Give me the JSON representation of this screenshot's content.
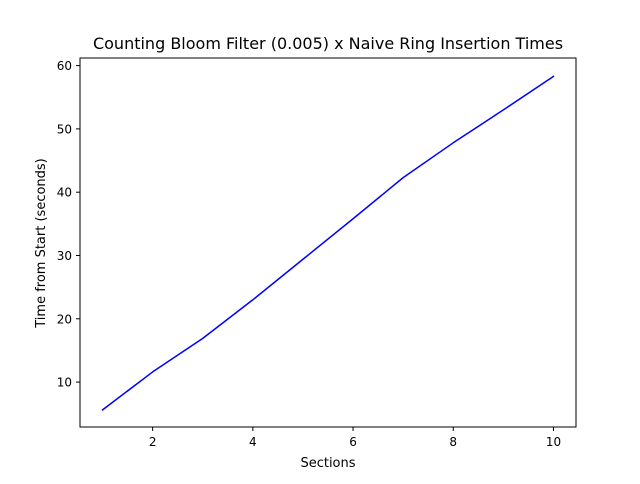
{
  "chart_data": {
    "type": "line",
    "title": "Counting Bloom Filter (0.005) x Naive Ring Insertion Times",
    "xlabel": "Sections",
    "ylabel": "Time from Start (seconds)",
    "xlim": [
      0.55,
      10.45
    ],
    "ylim": [
      2.9,
      61.2
    ],
    "x_ticks": [
      2,
      4,
      6,
      8,
      10
    ],
    "y_ticks": [
      10,
      20,
      30,
      40,
      50,
      60
    ],
    "grid": false,
    "legend": "none",
    "series": [
      {
        "color": "#0000ff",
        "x": [
          1,
          2,
          3,
          4,
          5,
          6,
          7,
          8,
          9,
          10
        ],
        "y": [
          5.6,
          11.6,
          16.9,
          23.0,
          29.4,
          35.8,
          42.3,
          47.8,
          53.0,
          58.3
        ]
      }
    ]
  }
}
